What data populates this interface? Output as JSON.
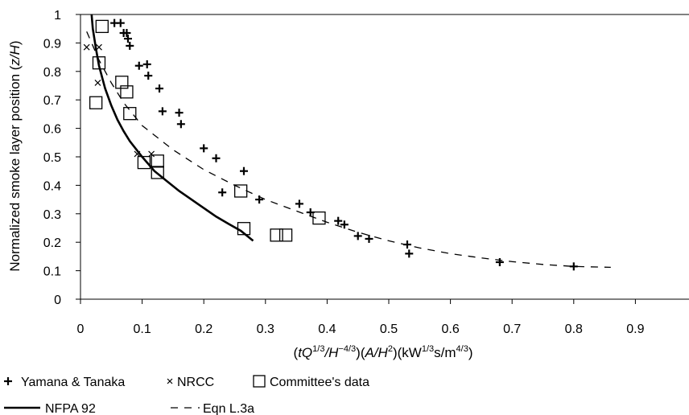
{
  "chart_data": {
    "type": "scatter",
    "title": "",
    "xlabel": "(tQ1/3/H−4/3)(A/H2)(kW1/3s/m4/3)",
    "ylabel": "Normalized smoke layer position (z/H)",
    "xlim": [
      0,
      0.95
    ],
    "ylim": [
      0,
      1
    ],
    "xticks": [
      "0",
      "0.1",
      "0.2",
      "0.3",
      "0.4",
      "0.5",
      "0.6",
      "0.7",
      "0.8",
      "0.9"
    ],
    "yticks": [
      "0",
      "0.1",
      "0.2",
      "0.3",
      "0.4",
      "0.5",
      "0.6",
      "0.7",
      "0.8",
      "0.9",
      "1"
    ],
    "grid": false,
    "legend_position": "bottom-left",
    "series": [
      {
        "name": "Yamana & Tanaka",
        "marker": "plus",
        "color": "#000000",
        "points": [
          [
            0.055,
            0.97
          ],
          [
            0.065,
            0.97
          ],
          [
            0.07,
            0.935
          ],
          [
            0.075,
            0.935
          ],
          [
            0.077,
            0.915
          ],
          [
            0.08,
            0.89
          ],
          [
            0.095,
            0.82
          ],
          [
            0.108,
            0.825
          ],
          [
            0.11,
            0.785
          ],
          [
            0.128,
            0.74
          ],
          [
            0.133,
            0.66
          ],
          [
            0.16,
            0.655
          ],
          [
            0.163,
            0.615
          ],
          [
            0.2,
            0.53
          ],
          [
            0.22,
            0.495
          ],
          [
            0.23,
            0.375
          ],
          [
            0.265,
            0.45
          ],
          [
            0.29,
            0.35
          ],
          [
            0.355,
            0.335
          ],
          [
            0.373,
            0.305
          ],
          [
            0.418,
            0.275
          ],
          [
            0.428,
            0.262
          ],
          [
            0.45,
            0.222
          ],
          [
            0.468,
            0.212
          ],
          [
            0.53,
            0.192
          ],
          [
            0.533,
            0.16
          ],
          [
            0.68,
            0.13
          ],
          [
            0.8,
            0.115
          ]
        ]
      },
      {
        "name": "NRCC",
        "marker": "x",
        "color": "#000000",
        "points": [
          [
            0.01,
            0.885
          ],
          [
            0.03,
            0.885
          ],
          [
            0.028,
            0.76
          ],
          [
            0.092,
            0.51
          ],
          [
            0.115,
            0.51
          ]
        ]
      },
      {
        "name": "Committee's data",
        "marker": "square",
        "color": "#000000",
        "points": [
          [
            0.035,
            0.958
          ],
          [
            0.03,
            0.83
          ],
          [
            0.025,
            0.69
          ],
          [
            0.067,
            0.762
          ],
          [
            0.075,
            0.728
          ],
          [
            0.08,
            0.652
          ],
          [
            0.103,
            0.48
          ],
          [
            0.125,
            0.485
          ],
          [
            0.125,
            0.445
          ],
          [
            0.26,
            0.38
          ],
          [
            0.265,
            0.248
          ],
          [
            0.318,
            0.225
          ],
          [
            0.333,
            0.225
          ],
          [
            0.387,
            0.285
          ]
        ]
      },
      {
        "name": "NFPA 92",
        "line": "solid",
        "color": "#000000",
        "points": [
          [
            0.018,
            1.0
          ],
          [
            0.02,
            0.95
          ],
          [
            0.025,
            0.88
          ],
          [
            0.03,
            0.82
          ],
          [
            0.04,
            0.74
          ],
          [
            0.05,
            0.68
          ],
          [
            0.06,
            0.63
          ],
          [
            0.07,
            0.59
          ],
          [
            0.08,
            0.555
          ],
          [
            0.1,
            0.5
          ],
          [
            0.12,
            0.45
          ],
          [
            0.14,
            0.415
          ],
          [
            0.16,
            0.38
          ],
          [
            0.18,
            0.35
          ],
          [
            0.2,
            0.32
          ],
          [
            0.22,
            0.29
          ],
          [
            0.24,
            0.265
          ],
          [
            0.26,
            0.24
          ],
          [
            0.28,
            0.205
          ]
        ]
      },
      {
        "name": "Eqn L.3a",
        "line": "dashed",
        "color": "#000000",
        "points": [
          [
            0.01,
            0.94
          ],
          [
            0.03,
            0.84
          ],
          [
            0.05,
            0.76
          ],
          [
            0.07,
            0.69
          ],
          [
            0.1,
            0.61
          ],
          [
            0.15,
            0.525
          ],
          [
            0.2,
            0.455
          ],
          [
            0.25,
            0.4
          ],
          [
            0.3,
            0.35
          ],
          [
            0.35,
            0.31
          ],
          [
            0.4,
            0.27
          ],
          [
            0.45,
            0.235
          ],
          [
            0.5,
            0.205
          ],
          [
            0.55,
            0.18
          ],
          [
            0.6,
            0.16
          ],
          [
            0.65,
            0.145
          ],
          [
            0.7,
            0.132
          ],
          [
            0.75,
            0.122
          ],
          [
            0.8,
            0.115
          ],
          [
            0.86,
            0.112
          ]
        ]
      }
    ]
  }
}
